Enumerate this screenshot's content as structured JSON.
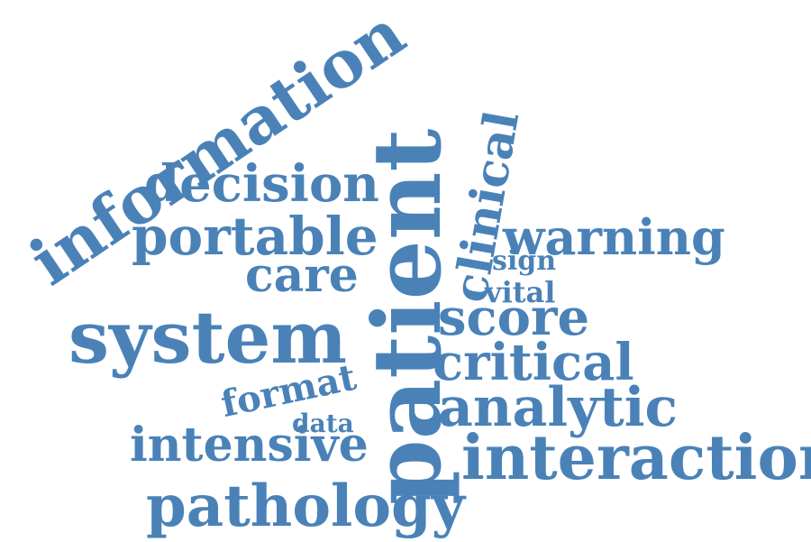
{
  "word_color": "#4a82b8",
  "words": {
    "information": "information",
    "decision": "decision",
    "portable": "portable",
    "care": "care",
    "system": "system",
    "format": "format",
    "data": "data",
    "intensive": "intensive",
    "pathology": "pathology",
    "patient": "patient",
    "clinical": "clinical",
    "warning": "warning",
    "sign": "sign",
    "vital": "vital",
    "score": "score",
    "critical": "critical",
    "analytic": "analytic",
    "interaction": "interaction"
  }
}
